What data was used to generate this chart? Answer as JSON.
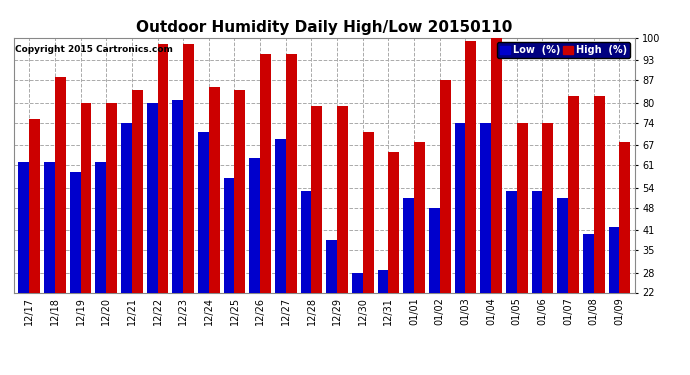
{
  "title": "Outdoor Humidity Daily High/Low 20150110",
  "copyright": "Copyright 2015 Cartronics.com",
  "labels": [
    "12/17",
    "12/18",
    "12/19",
    "12/20",
    "12/21",
    "12/22",
    "12/23",
    "12/24",
    "12/25",
    "12/26",
    "12/27",
    "12/28",
    "12/29",
    "12/30",
    "12/31",
    "01/01",
    "01/02",
    "01/03",
    "01/04",
    "01/05",
    "01/06",
    "01/07",
    "01/08",
    "01/09"
  ],
  "high": [
    75,
    88,
    80,
    80,
    84,
    98,
    98,
    85,
    84,
    95,
    95,
    79,
    79,
    71,
    65,
    68,
    87,
    99,
    100,
    74,
    74,
    82,
    82,
    68
  ],
  "low": [
    62,
    62,
    59,
    62,
    74,
    80,
    81,
    71,
    57,
    63,
    69,
    53,
    38,
    28,
    29,
    51,
    48,
    74,
    74,
    53,
    53,
    51,
    40,
    42
  ],
  "bar_width": 0.42,
  "low_color": "#0000cc",
  "high_color": "#cc0000",
  "bg_color": "#ffffff",
  "grid_color": "#aaaaaa",
  "ymin": 22,
  "ymax": 100,
  "yticks": [
    22,
    28,
    35,
    41,
    48,
    54,
    61,
    67,
    74,
    80,
    87,
    93,
    100
  ],
  "title_fontsize": 11,
  "copyright_fontsize": 6.5,
  "tick_fontsize": 7,
  "legend_low_label": "Low  (%)",
  "legend_high_label": "High  (%)"
}
